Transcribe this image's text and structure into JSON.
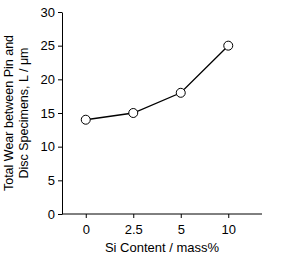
{
  "chart_data": {
    "type": "line",
    "y_label": [
      "Total Wear between Pin and",
      "Disc Specimens, L / μm"
    ],
    "x_label": "Si Content / mass%",
    "categories": [
      "0",
      "2.5",
      "5",
      "10"
    ],
    "values": [
      14,
      15,
      18,
      25
    ],
    "color": "#000000",
    "marker": "circle",
    "ylim": [
      0,
      30
    ],
    "yticks": [
      0,
      5,
      10,
      15,
      20,
      25,
      30
    ],
    "grid": false
  }
}
